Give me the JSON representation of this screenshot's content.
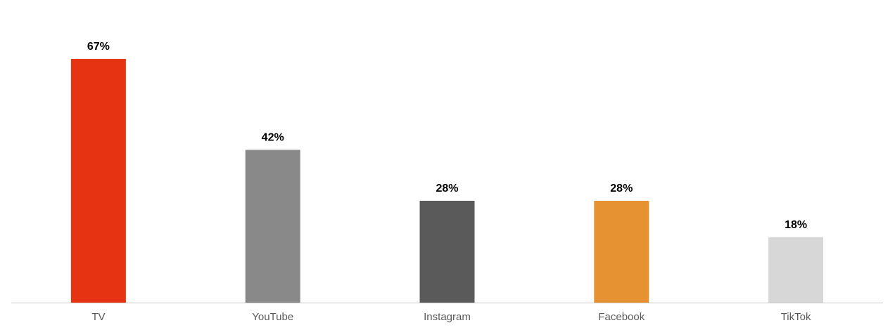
{
  "chart_data": {
    "type": "bar",
    "categories": [
      "TV",
      "YouTube",
      "Instagram",
      "Facebook",
      "TikTok"
    ],
    "values": [
      67,
      42,
      28,
      28,
      18
    ],
    "value_labels": [
      "67%",
      "42%",
      "28%",
      "28%",
      "18%"
    ],
    "colors": [
      "#e63312",
      "#898989",
      "#5a5a5a",
      "#e69233",
      "#d7d7d7"
    ]
  }
}
